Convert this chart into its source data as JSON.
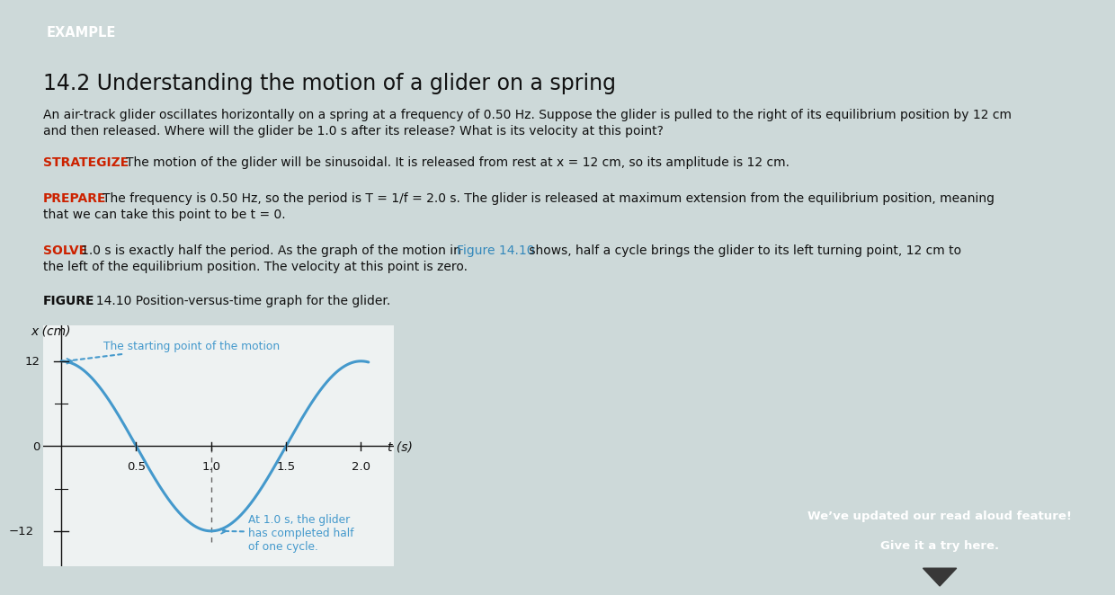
{
  "bg_color": "#cdd9d9",
  "header_color": "#2e6b6b",
  "header_text": "EXAMPLE",
  "title": "14.2 Understanding the motion of a glider on a spring",
  "body1_line1": "An air-track glider oscillates horizontally on a spring at a frequency of 0.50 Hz. Suppose the glider is pulled to the right of its equilibrium position by 12 cm",
  "body1_line2": "and then released. Where will the glider be 1.0 s after its release? What is its velocity at this point?",
  "strategize_label": "STRATEGIZE",
  "strategize_body": "The motion of the glider will be sinusoidal. It is released from rest at x = 12 cm, so its amplitude is 12 cm.",
  "prepare_label": "PREPARE",
  "prepare_line1": "The frequency is 0.50 Hz, so the period is T = 1/f = 2.0 s. The glider is released at maximum extension from the equilibrium position, meaning",
  "prepare_line2": "that we can take this point to be t = 0.",
  "solve_label": "SOLVE",
  "solve_part1": "1.0 s is exactly half the period. As the graph of the motion in ",
  "solve_figref": "Figure 14.10",
  "solve_part2": " shows, half a cycle brings the glider to its left turning point, 12 cm to",
  "solve_line2": "the left of the equilibrium position. The velocity at this point is zero.",
  "fig_label_bold": "FIGURE",
  "fig_label_rest": "  14.10 Position-versus-time graph for the glider.",
  "plot_bg": "#eef2f2",
  "curve_color": "#4499cc",
  "annotation_color": "#4499cc",
  "amplitude": 12,
  "period": 2.0,
  "t_max": 2.05,
  "xticks": [
    0.5,
    1.0,
    1.5,
    2.0
  ],
  "ytick_pos": [
    12,
    0,
    -12
  ],
  "annotation1": "The starting point of the motion",
  "annotation2_line1": "At 1.0 s, the glider",
  "annotation2_line2": "has completed half",
  "annotation2_line3": "of one cycle.",
  "red_color": "#cc2200",
  "blue_color": "#3388bb",
  "toast_bg": "#383838",
  "toast_line1": "We’ve updated our read aloud feature!",
  "toast_line2": "Give it a try here.",
  "toast_text_color": "#ffffff",
  "dark_gray": "#333333",
  "tick_color": "#555555"
}
